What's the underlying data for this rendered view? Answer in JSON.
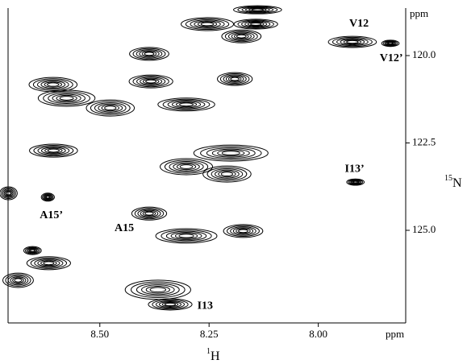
{
  "chart_data": {
    "type": "contour",
    "xlabel_isotope": "1",
    "xlabel": "H",
    "ylabel_isotope": "15",
    "ylabel": "N",
    "xunit": "ppm",
    "yunit": "ppm",
    "xlim": [
      8.71,
      7.8
    ],
    "ylim": [
      118.64,
      127.65
    ],
    "xticks": [
      {
        "value": 8.5,
        "label": "8.50"
      },
      {
        "value": 8.25,
        "label": "8.25"
      },
      {
        "value": 8.0,
        "label": "8.00"
      }
    ],
    "yticks": [
      {
        "value": 120,
        "label": "120.0"
      },
      {
        "value": 122.5,
        "label": "122.5"
      },
      {
        "value": 125,
        "label": "125.0"
      }
    ],
    "color": "#000000",
    "peaks": {
      "x": [
        7.922,
        7.835,
        8.254,
        8.143,
        8.139,
        8.176,
        8.387,
        8.383,
        8.191,
        8.607,
        8.576,
        8.476,
        8.302,
        8.606,
        8.2,
        8.302,
        8.209,
        7.915,
        8.709,
        8.619,
        8.387,
        8.302,
        8.172,
        8.654,
        8.617,
        8.687,
        8.367,
        8.339
      ],
      "y": [
        119.61,
        119.65,
        119.1,
        119.1,
        118.69,
        119.45,
        119.95,
        120.74,
        120.67,
        120.83,
        121.22,
        121.5,
        121.4,
        122.72,
        122.79,
        123.18,
        123.39,
        123.62,
        123.94,
        124.05,
        124.52,
        125.16,
        125.02,
        125.58,
        125.94,
        126.43,
        126.7,
        127.12
      ],
      "width": [
        0.11,
        0.04,
        0.12,
        0.1,
        0.11,
        0.09,
        0.09,
        0.1,
        0.08,
        0.11,
        0.13,
        0.11,
        0.13,
        0.11,
        0.17,
        0.12,
        0.11,
        0.04,
        0.04,
        0.03,
        0.08,
        0.14,
        0.09,
        0.04,
        0.1,
        0.07,
        0.15,
        0.1
      ],
      "height": [
        0.32,
        0.18,
        0.37,
        0.28,
        0.23,
        0.37,
        0.37,
        0.37,
        0.37,
        0.41,
        0.46,
        0.46,
        0.37,
        0.37,
        0.46,
        0.46,
        0.46,
        0.18,
        0.37,
        0.23,
        0.37,
        0.41,
        0.37,
        0.23,
        0.37,
        0.41,
        0.55,
        0.32
      ]
    },
    "annotations": [
      {
        "text": "V12",
        "x": 7.907,
        "y": 119.1
      },
      {
        "text": "V12’",
        "x": 7.833,
        "y": 120.09
      },
      {
        "text": "I13’",
        "x": 7.917,
        "y": 123.25
      },
      {
        "text": "A15’",
        "x": 8.611,
        "y": 124.58
      },
      {
        "text": "A15",
        "x": 8.444,
        "y": 124.95
      },
      {
        "text": "I13",
        "x": 8.259,
        "y": 127.17
      }
    ]
  }
}
